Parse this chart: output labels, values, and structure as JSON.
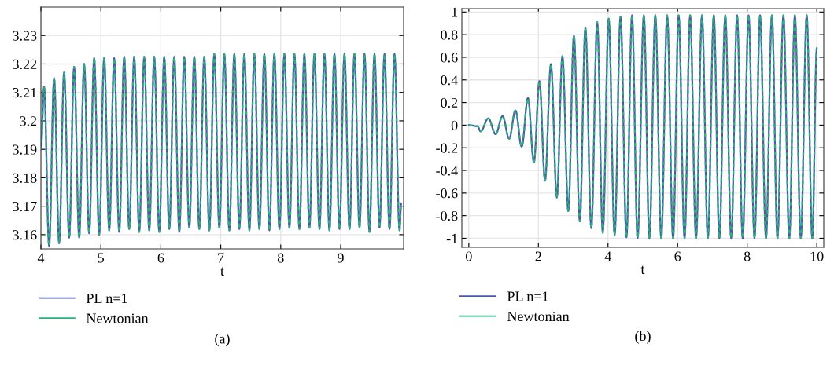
{
  "chart_data": [
    {
      "type": "line",
      "xlabel": "t",
      "xlim": [
        4,
        10.05
      ],
      "xticks": [
        4,
        5,
        6,
        7,
        8,
        9
      ],
      "ylim": [
        3.155,
        3.24
      ],
      "yticks": [
        3.16,
        3.17,
        3.18,
        3.19,
        {
          "value": 3.2,
          "label": "3.2"
        },
        3.21,
        3.22,
        3.23
      ],
      "grid": true,
      "legend": "bottom left",
      "annotations": [
        "(a)"
      ],
      "x": [
        4.0,
        4.053,
        4.137,
        4.22,
        4.304,
        4.387,
        4.471,
        4.554,
        4.638,
        4.721,
        4.805,
        4.888,
        4.972,
        5.055,
        5.139,
        5.222,
        5.306,
        5.389,
        5.473,
        5.556,
        5.64,
        5.723,
        5.807,
        5.89,
        5.974,
        6.057,
        6.141,
        6.224,
        6.308,
        6.391,
        6.475,
        6.558,
        6.642,
        6.725,
        6.809,
        6.892,
        6.976,
        7.059,
        7.143,
        7.226,
        7.31,
        7.393,
        7.477,
        7.56,
        7.644,
        7.727,
        7.811,
        7.894,
        7.978,
        8.061,
        8.145,
        8.228,
        8.312,
        8.395,
        8.479,
        8.562,
        8.646,
        8.729,
        8.813,
        8.896,
        8.98,
        9.063,
        9.147,
        9.23,
        9.314,
        9.397,
        9.481,
        9.564,
        9.648,
        9.731,
        9.815,
        9.898,
        9.982,
        10.01
      ],
      "series": [
        {
          "name": "PL n=1",
          "color": "#4a5aa8",
          "values": [
            3.19,
            3.212,
            3.156,
            3.215,
            3.157,
            3.217,
            3.159,
            3.219,
            3.159,
            3.22,
            3.1605,
            3.222,
            3.16,
            3.222,
            3.1615,
            3.222,
            3.161,
            3.2225,
            3.162,
            3.2225,
            3.161,
            3.2225,
            3.1615,
            3.2225,
            3.161,
            3.2225,
            3.162,
            3.2225,
            3.161,
            3.2225,
            3.1625,
            3.2225,
            3.162,
            3.2225,
            3.1615,
            3.2235,
            3.1625,
            3.2235,
            3.1615,
            3.2235,
            3.162,
            3.2235,
            3.1615,
            3.2235,
            3.162,
            3.2235,
            3.1615,
            3.2235,
            3.162,
            3.2235,
            3.1625,
            3.2235,
            3.162,
            3.2235,
            3.1625,
            3.2235,
            3.162,
            3.2235,
            3.1615,
            3.2235,
            3.162,
            3.2235,
            3.162,
            3.2235,
            3.1625,
            3.2235,
            3.161,
            3.2235,
            3.1625,
            3.2235,
            3.162,
            3.2235,
            3.1615,
            3.171
          ]
        },
        {
          "name": "Newtonian",
          "color": "#2bb07c",
          "line_style": "dashed",
          "values": [
            3.19,
            3.212,
            3.156,
            3.215,
            3.157,
            3.217,
            3.159,
            3.219,
            3.159,
            3.22,
            3.1605,
            3.222,
            3.16,
            3.222,
            3.1615,
            3.222,
            3.161,
            3.2225,
            3.162,
            3.2225,
            3.161,
            3.2225,
            3.1615,
            3.2225,
            3.161,
            3.2225,
            3.162,
            3.2225,
            3.161,
            3.2225,
            3.1625,
            3.2225,
            3.162,
            3.2225,
            3.1615,
            3.2235,
            3.1625,
            3.2235,
            3.1615,
            3.2235,
            3.162,
            3.2235,
            3.1615,
            3.2235,
            3.162,
            3.2235,
            3.1615,
            3.2235,
            3.162,
            3.2235,
            3.1625,
            3.2235,
            3.162,
            3.2235,
            3.1625,
            3.2235,
            3.162,
            3.2235,
            3.1615,
            3.2235,
            3.162,
            3.2235,
            3.162,
            3.2235,
            3.1625,
            3.2235,
            3.161,
            3.2235,
            3.1625,
            3.2235,
            3.162,
            3.2235,
            3.1615,
            3.171
          ]
        }
      ]
    },
    {
      "type": "line",
      "xlabel": "t",
      "xlim": [
        -0.2,
        10.2
      ],
      "xticks": [
        0,
        2,
        4,
        6,
        8,
        10
      ],
      "ylim": [
        -1.08,
        1.03
      ],
      "yticks": [
        -1,
        -0.8,
        -0.6,
        -0.4,
        -0.2,
        0,
        0.2,
        0.4,
        0.6,
        0.8,
        1
      ],
      "grid": true,
      "legend": "bottom left",
      "annotations": [
        "(b)"
      ],
      "x": [
        0,
        0.25,
        0.34,
        0.56,
        0.77,
        0.97,
        1.16,
        1.34,
        1.52,
        1.7,
        1.87,
        2.03,
        2.19,
        2.36,
        2.53,
        2.69,
        2.86,
        3.02,
        3.19,
        3.35,
        3.52,
        3.69,
        3.85,
        4.02,
        4.19,
        4.36,
        4.53,
        4.69,
        4.85,
        5.03,
        5.19,
        5.36,
        5.53,
        5.7,
        5.87,
        6.03,
        6.2,
        6.36,
        6.53,
        6.7,
        6.87,
        7.04,
        7.2,
        7.37,
        7.54,
        7.71,
        7.87,
        8.04,
        8.21,
        8.37,
        8.54,
        8.71,
        8.87,
        9.04,
        9.21,
        9.37,
        9.54,
        9.71,
        9.87,
        10.0
      ],
      "series": [
        {
          "name": "PL n=1",
          "color": "#4a5aa8",
          "values": [
            0,
            -0.01,
            -0.055,
            0.06,
            -0.08,
            0.08,
            -0.12,
            0.13,
            -0.19,
            0.24,
            -0.33,
            0.39,
            -0.49,
            0.54,
            -0.64,
            0.61,
            -0.76,
            0.79,
            -0.85,
            0.86,
            -0.91,
            0.91,
            -0.95,
            0.94,
            -0.97,
            0.96,
            -0.99,
            0.97,
            -1.0,
            0.97,
            -1.0,
            0.97,
            -1.0,
            0.97,
            -1.0,
            0.97,
            -1.0,
            0.97,
            -1.0,
            0.97,
            -1.0,
            0.97,
            -1.0,
            0.97,
            -1.0,
            0.97,
            -1.0,
            0.97,
            -1.0,
            0.97,
            -1.0,
            0.97,
            -1.0,
            0.97,
            -1.0,
            0.97,
            -1.0,
            0.97,
            -1.0,
            0.68
          ]
        },
        {
          "name": "Newtonian",
          "color": "#2bb07c",
          "line_style": "dashed",
          "values": [
            0,
            -0.01,
            -0.055,
            0.06,
            -0.08,
            0.08,
            -0.12,
            0.13,
            -0.19,
            0.24,
            -0.33,
            0.39,
            -0.49,
            0.54,
            -0.64,
            0.61,
            -0.76,
            0.79,
            -0.85,
            0.86,
            -0.91,
            0.91,
            -0.95,
            0.94,
            -0.97,
            0.96,
            -0.99,
            0.97,
            -1.0,
            0.97,
            -1.0,
            0.97,
            -1.0,
            0.97,
            -1.0,
            0.97,
            -1.0,
            0.97,
            -1.0,
            0.97,
            -1.0,
            0.97,
            -1.0,
            0.97,
            -1.0,
            0.97,
            -1.0,
            0.97,
            -1.0,
            0.97,
            -1.0,
            0.97,
            -1.0,
            0.97,
            -1.0,
            0.97,
            -1.0,
            0.97,
            -1.0,
            0.68
          ]
        }
      ]
    }
  ]
}
